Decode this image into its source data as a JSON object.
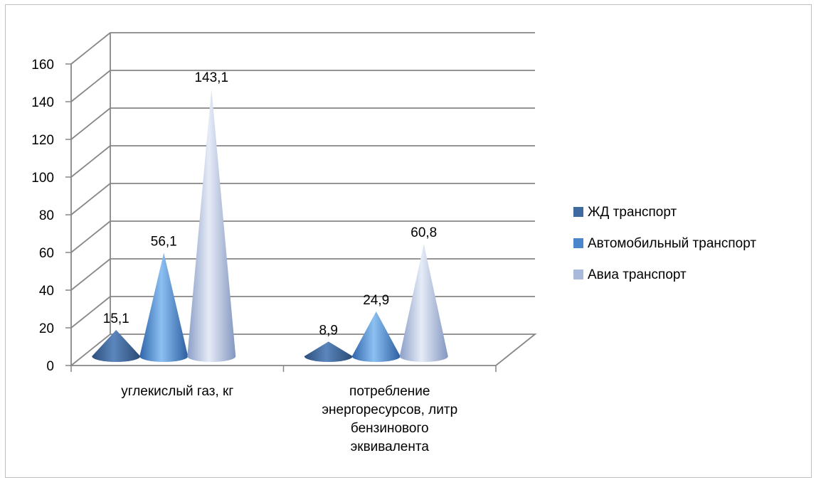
{
  "chart_data": {
    "type": "bar",
    "style": "3d-cone",
    "categories": [
      [
        "углекислый газ, кг"
      ],
      [
        "потребление",
        "энергоресурсов, литр",
        "бензинового",
        "эквивалента"
      ]
    ],
    "series": [
      {
        "name": "ЖД транспорт",
        "values": [
          15.1,
          8.9
        ],
        "labels": [
          "15,1",
          "8,9"
        ],
        "color": "#3e6aa0"
      },
      {
        "name": "Автомобильный транспорт",
        "values": [
          56.1,
          24.9
        ],
        "labels": [
          "56,1",
          "24,9"
        ],
        "color": "#4a86cc"
      },
      {
        "name": "Авиа транспорт",
        "values": [
          143.1,
          60.8
        ],
        "labels": [
          "143,1",
          "60,8"
        ],
        "color": "#a8b9dc"
      }
    ],
    "yticks": [
      "0",
      "20",
      "40",
      "60",
      "80",
      "100",
      "120",
      "140",
      "160"
    ],
    "ylim": [
      0,
      160
    ],
    "grid": true,
    "legend_position": "right"
  }
}
